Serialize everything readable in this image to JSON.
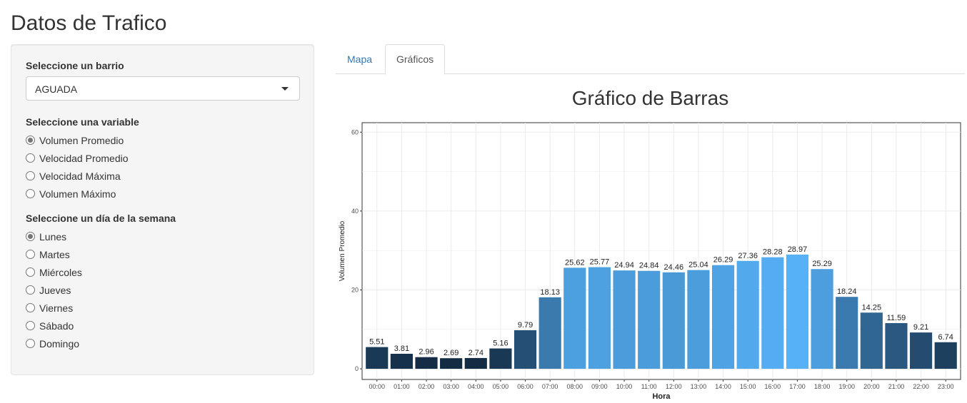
{
  "app": {
    "title": "Datos de Trafico"
  },
  "sidebar": {
    "barrio": {
      "label": "Seleccione un barrio",
      "selected": "AGUADA"
    },
    "variable": {
      "label": "Seleccione una variable",
      "options": [
        "Volumen Promedio",
        "Velocidad Promedio",
        "Velocidad Máxima",
        "Volumen Máximo"
      ],
      "selected_index": 0
    },
    "dia": {
      "label": "Seleccione un día de la semana",
      "options": [
        "Lunes",
        "Martes",
        "Miércoles",
        "Jueves",
        "Viernes",
        "Sábado",
        "Domingo"
      ],
      "selected_index": 0
    }
  },
  "tabs": [
    {
      "label": "Mapa",
      "active": false
    },
    {
      "label": "Gráficos",
      "active": true
    }
  ],
  "chart_title": "Gráfico de Barras",
  "chart_data": {
    "type": "bar",
    "categories": [
      "00:00",
      "01:00",
      "02:00",
      "03:00",
      "04:00",
      "05:00",
      "06:00",
      "07:00",
      "08:00",
      "09:00",
      "10:00",
      "11:00",
      "12:00",
      "13:00",
      "14:00",
      "15:00",
      "16:00",
      "17:00",
      "18:00",
      "19:00",
      "20:00",
      "21:00",
      "22:00",
      "23:00"
    ],
    "values": [
      5.51,
      3.81,
      2.96,
      2.69,
      2.74,
      5.16,
      9.79,
      18.13,
      25.62,
      25.77,
      24.94,
      24.84,
      24.46,
      25.04,
      26.29,
      27.36,
      28.28,
      28.97,
      25.29,
      18.24,
      14.25,
      11.59,
      9.21,
      6.74
    ],
    "data_labels": [
      "5.51",
      "3.81",
      "2.96",
      "2.69",
      "2.74",
      "5.16",
      "9.79",
      "18.13",
      "25.62",
      "25.77",
      "24.94",
      "24.84",
      "24.46",
      "25.04",
      "26.29",
      "27.36",
      "28.28",
      "28.97",
      "25.29",
      "18.24",
      "14.25",
      "11.59",
      "9.21",
      "6.74"
    ],
    "xlabel": "Hora",
    "ylabel": "Volumen Promedio",
    "ylim": [
      0,
      60
    ],
    "yticks": [
      0,
      20,
      40,
      60
    ],
    "grid": true,
    "legend": "none",
    "color_low": "#132B43",
    "color_high": "#56B1F7"
  }
}
